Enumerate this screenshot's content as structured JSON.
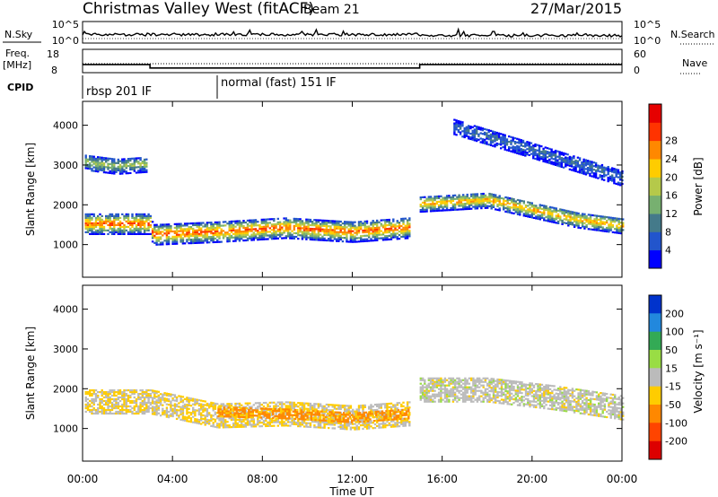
{
  "header": {
    "station": "Christmas Valley West (fitACF)",
    "beam": "Beam 21",
    "date": "27/Mar/2015"
  },
  "noise_panel": {
    "left_label": "N.Sky",
    "right_label": "N.Search",
    "left_ticks": [
      "10^5",
      "10^0"
    ],
    "right_ticks": [
      "10^5",
      "10^0"
    ]
  },
  "freq_panel": {
    "left_label_1": "Freq.",
    "left_label_2": "[MHz]",
    "left_ticks": [
      "18",
      "8"
    ],
    "right_label": "Nave",
    "right_ticks": [
      "60",
      "0"
    ]
  },
  "cpid": {
    "label": "CPID",
    "segments": [
      {
        "start_h": 0,
        "end_h": 6,
        "text": "rbsp 201 IF"
      },
      {
        "start_h": 6,
        "end_h": 24,
        "text": "normal (fast) 151 IF"
      }
    ]
  },
  "panels": {
    "power": {
      "ylabel": "Slant Range [km]",
      "y_ticks": [
        "1000",
        "2000",
        "3000",
        "4000"
      ],
      "colorbar_label": "Power [dB]",
      "colorbar_ticks": [
        "4",
        "8",
        "12",
        "16",
        "20",
        "24",
        "28"
      ],
      "colors": [
        "#0000ff",
        "#2255cc",
        "#447a8a",
        "#77b070",
        "#b5c94a",
        "#ffcc00",
        "#ff8800",
        "#ff3300",
        "#e60000"
      ]
    },
    "velocity": {
      "ylabel": "Slant Range [km]",
      "y_ticks": [
        "1000",
        "2000",
        "3000",
        "4000"
      ],
      "colorbar_label": "Velocity [m s⁻¹]",
      "colorbar_ticks": [
        "200",
        "100",
        "50",
        "15",
        "-15",
        "-50",
        "-100",
        "-200"
      ],
      "colors": [
        "#0033cc",
        "#2288dd",
        "#33aa55",
        "#99dd44",
        "#bbbbbb",
        "#ffcc00",
        "#ff8800",
        "#ff4400",
        "#dd0000"
      ]
    }
  },
  "xaxis": {
    "label": "Time UT",
    "ticks": [
      "00:00",
      "04:00",
      "08:00",
      "12:00",
      "16:00",
      "20:00",
      "00:00"
    ]
  },
  "chart_data": {
    "type": "heatmap",
    "title": "Christmas Valley West (fitACF) Beam 21 27/Mar/2015",
    "xlabel": "Time UT",
    "ylabel": "Slant Range [km]",
    "xlim_hours": [
      0,
      24
    ],
    "ylim_km": [
      180,
      4600
    ],
    "freq_mhz": [
      {
        "start_h": 0,
        "end_h": 3.0,
        "value": 11.5
      },
      {
        "start_h": 3.0,
        "end_h": 15.0,
        "value": 10.0
      },
      {
        "start_h": 15.0,
        "end_h": 24,
        "value": 11.5
      }
    ],
    "power_features": [
      {
        "name": "main echo band",
        "points_h": [
          0.1,
          1.5,
          3.0,
          3.1,
          6,
          9,
          12,
          14.5
        ],
        "range_km": [
          1550,
          1550,
          1550,
          1280,
          1350,
          1450,
          1350,
          1450
        ],
        "peak_db": 26
      },
      {
        "name": "upper band early",
        "points_h": [
          0.1,
          1.5,
          2.8
        ],
        "range_km": [
          3100,
          3000,
          3050
        ],
        "peak_db": 14
      },
      {
        "name": "evening band",
        "points_h": [
          15.0,
          18,
          20,
          22,
          24
        ],
        "range_km": [
          2050,
          2150,
          1900,
          1650,
          1500
        ],
        "peak_db": 22
      },
      {
        "name": "far band evening",
        "points_h": [
          16.5,
          20,
          24
        ],
        "range_km": [
          4000,
          3400,
          2700
        ],
        "peak_db": 6
      }
    ],
    "velocity_features": [
      {
        "name": "main band",
        "points_h": [
          0.1,
          3.0,
          6,
          9,
          12,
          14.5
        ],
        "range_km": [
          1700,
          1700,
          1350,
          1400,
          1300,
          1400
        ],
        "value_ms": -15
      },
      {
        "name": "afternoon flow",
        "points_h": [
          6,
          9,
          12,
          14.5
        ],
        "range_km": [
          1450,
          1400,
          1300,
          1400
        ],
        "value_ms": -60
      },
      {
        "name": "evening band",
        "points_h": [
          15.0,
          18,
          21,
          24
        ],
        "range_km": [
          2000,
          2000,
          1800,
          1550
        ],
        "value_ms": 0
      }
    ]
  }
}
